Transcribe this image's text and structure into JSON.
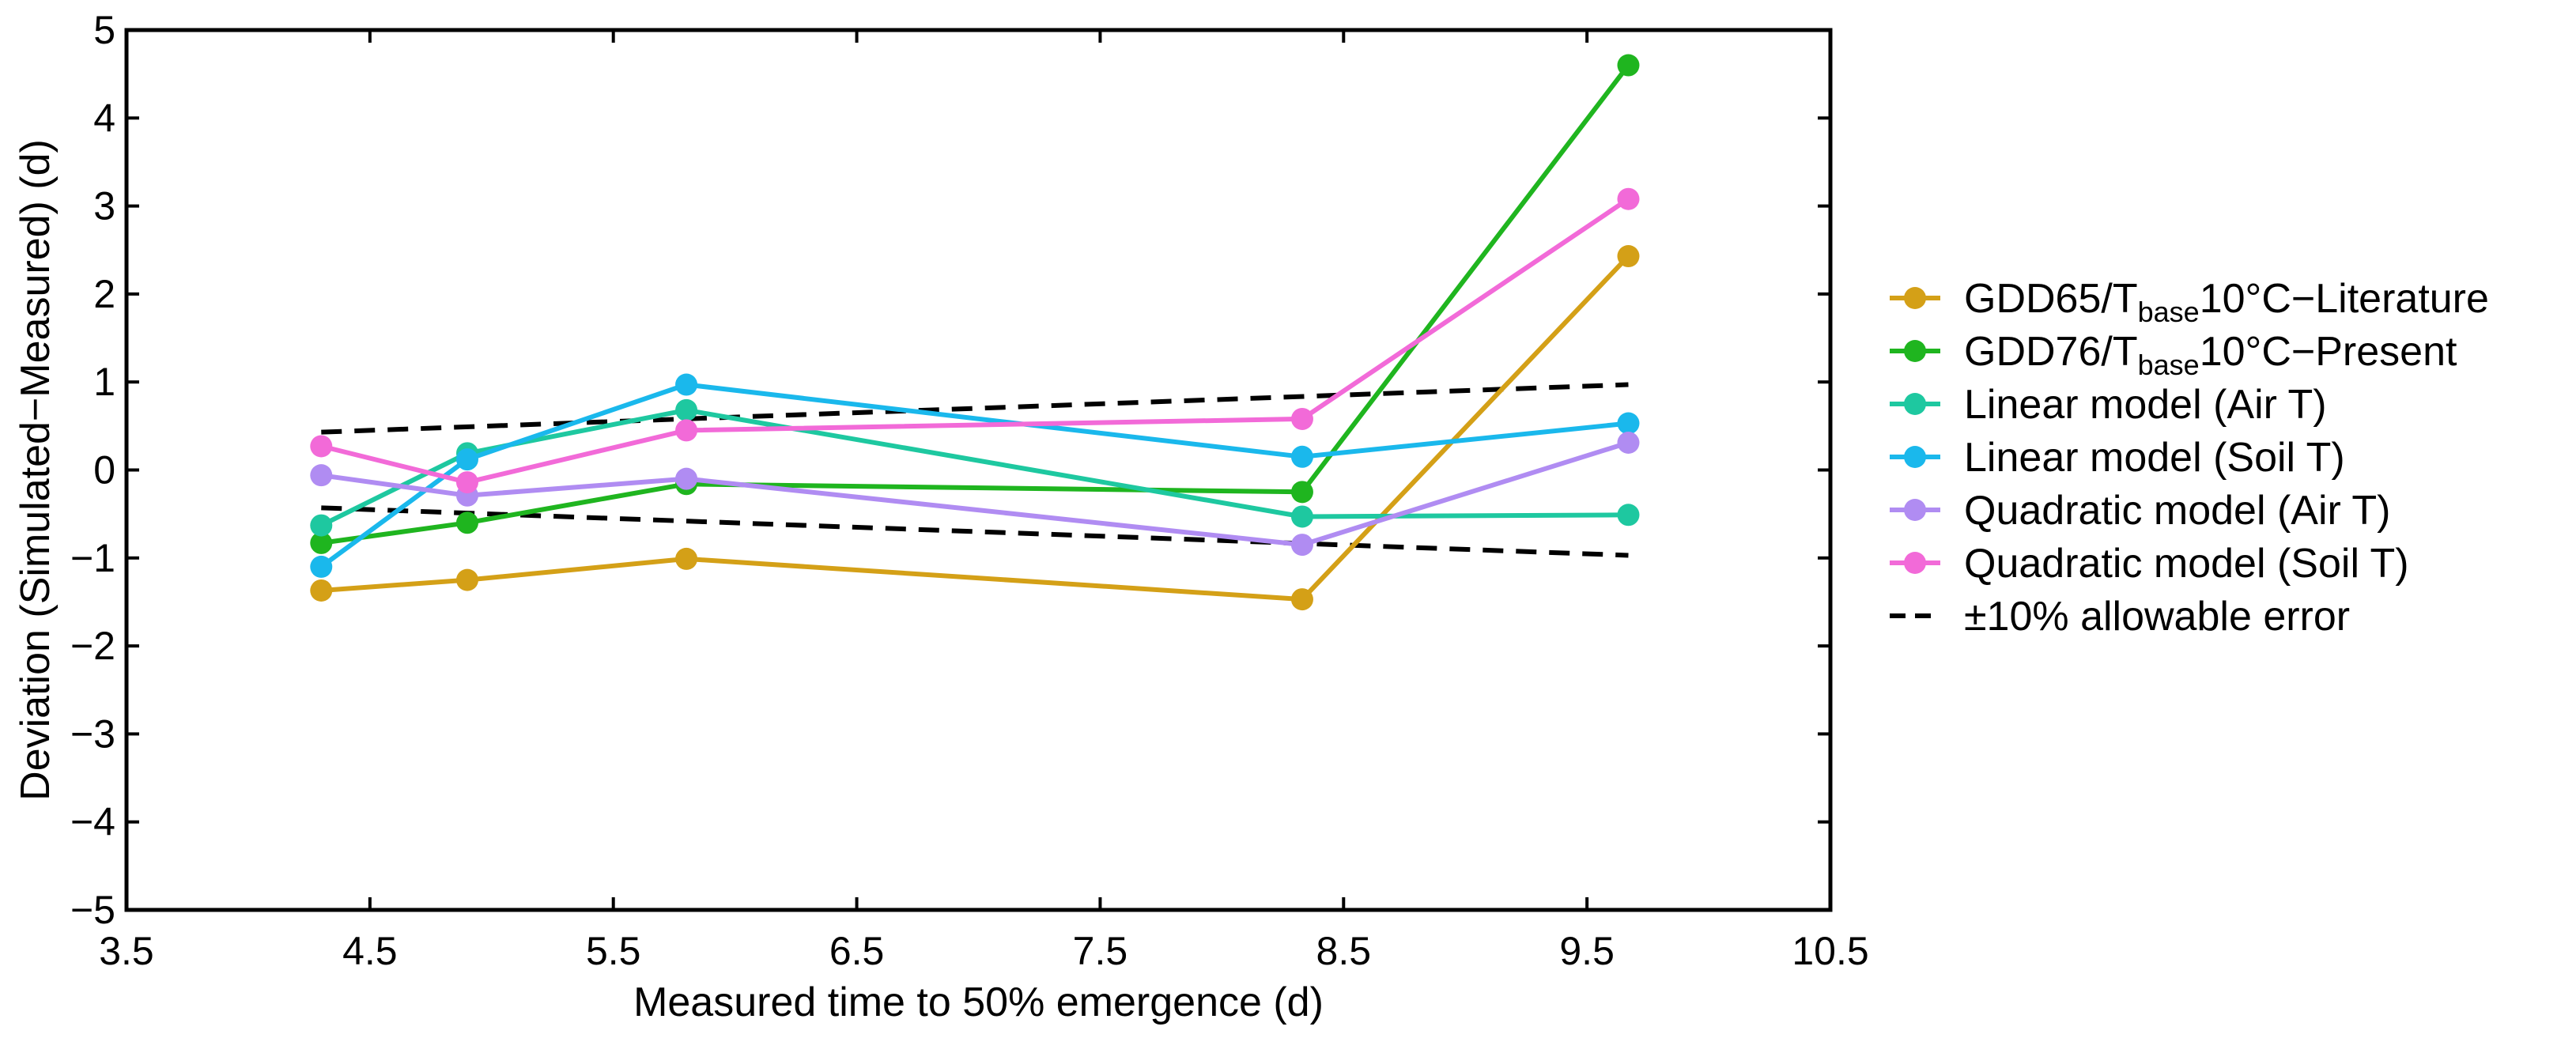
{
  "chart_data": {
    "type": "line",
    "title": "",
    "xlabel": "Measured time to 50% emergence (d)",
    "ylabel": "Deviation (Simulated−Measured) (d)",
    "xlim": [
      3.5,
      10.5
    ],
    "ylim": [
      -5,
      5
    ],
    "xticks": [
      3.5,
      4.5,
      5.5,
      6.5,
      7.5,
      8.5,
      9.5,
      10.5
    ],
    "xtick_labels": [
      "3.5",
      "4.5",
      "5.5",
      "6.5",
      "7.5",
      "8.5",
      "9.5",
      "10.5"
    ],
    "yticks": [
      5,
      4,
      3,
      2,
      1,
      0,
      -1,
      -2,
      -3,
      -4,
      -5
    ],
    "ytick_labels": [
      "5",
      "4",
      "3",
      "2",
      "1",
      "0",
      "−1",
      "−2",
      "−3",
      "−4",
      "−5"
    ],
    "grid": false,
    "legend_position": "right",
    "x": [
      4.3,
      4.9,
      5.8,
      8.33,
      9.67
    ],
    "series": [
      {
        "name": "GDD65/Tbase10°C−Literature",
        "name_parts": [
          "GDD65/T",
          "base",
          "10°C−Literature"
        ],
        "color": "#d4a017",
        "values": [
          -1.37,
          -1.25,
          -1.01,
          -1.47,
          2.43
        ]
      },
      {
        "name": "GDD76/Tbase10°C−Present",
        "name_parts": [
          "GDD76/T",
          "base",
          "10°C−Present"
        ],
        "color": "#1fb51f",
        "values": [
          -0.83,
          -0.6,
          -0.16,
          -0.25,
          4.6
        ]
      },
      {
        "name": "Linear model (Air T)",
        "color": "#1ec8a0",
        "values": [
          -0.63,
          0.19,
          0.68,
          -0.53,
          -0.51
        ]
      },
      {
        "name": "Linear model (Soil T)",
        "color": "#1ab8ec",
        "values": [
          -1.1,
          0.12,
          0.97,
          0.15,
          0.53
        ]
      },
      {
        "name": "Quadratic model (Air T)",
        "color": "#b08cf2",
        "values": [
          -0.06,
          -0.29,
          -0.1,
          -0.85,
          0.31
        ]
      },
      {
        "name": "Quadratic model (Soil T)",
        "color": "#f26ad8",
        "values": [
          0.27,
          -0.14,
          0.45,
          0.58,
          3.08
        ]
      }
    ],
    "reference_lines": {
      "name": "±10% allowable error",
      "color": "#000000",
      "style": "dashed",
      "x": [
        4.3,
        9.67
      ],
      "upper": [
        0.43,
        0.97
      ],
      "lower": [
        -0.43,
        -0.97
      ]
    }
  }
}
